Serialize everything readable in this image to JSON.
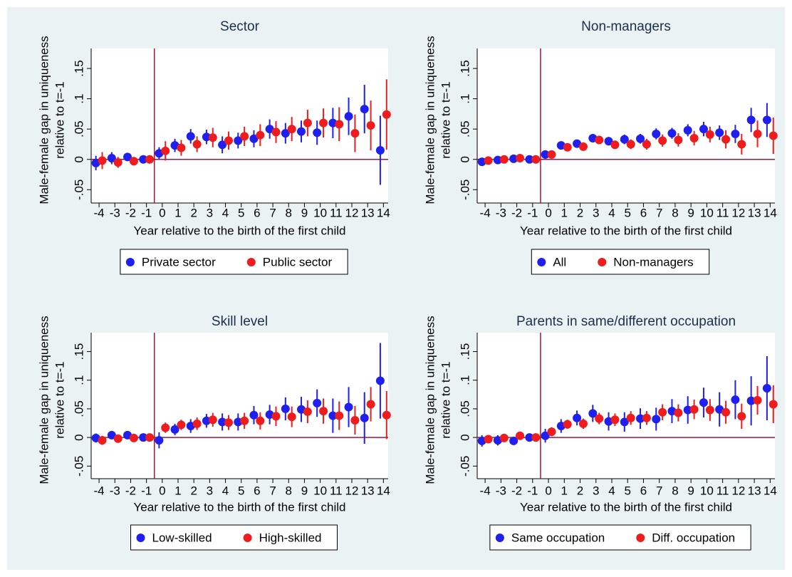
{
  "chart_data": [
    {
      "type": "errorbar",
      "title": "Sector",
      "ylabel": [
        "Male-female gap in uniqueness",
        "relative to t=-1"
      ],
      "xlabel": "Year relative to the birth of the first child",
      "x": [
        -4,
        -3,
        -2,
        -1,
        0,
        1,
        2,
        3,
        4,
        5,
        6,
        7,
        8,
        9,
        10,
        11,
        12,
        13,
        14
      ],
      "xlim": [
        -4.5,
        14.3
      ],
      "xticks": [
        -4,
        -3,
        -2,
        -1,
        0,
        1,
        2,
        3,
        4,
        5,
        6,
        7,
        8,
        9,
        10,
        11,
        12,
        13,
        14
      ],
      "ylim": [
        -0.072,
        0.183
      ],
      "yticks": [
        {
          "value": -0.05,
          "label": "-.05"
        },
        0,
        {
          "value": 0.05,
          "label": ".05"
        },
        {
          "value": 0.1,
          "label": ".1"
        },
        {
          "value": 0.15,
          "label": ".15"
        }
      ],
      "hline": 0,
      "vline": -0.5,
      "ref_color": "#a0163a",
      "series": [
        {
          "name": "Private sector",
          "color": "#1f1fef",
          "values": [
            -0.006,
            0.002,
            0.004,
            0,
            0.01,
            0.023,
            0.038,
            0.037,
            0.024,
            0.031,
            0.034,
            0.05,
            0.043,
            0.046,
            0.044,
            0.06,
            0.071,
            0.083,
            0.015
          ],
          "errors": [
            0.012,
            0.01,
            0.006,
            0,
            0.01,
            0.011,
            0.012,
            0.012,
            0.014,
            0.013,
            0.014,
            0.016,
            0.017,
            0.018,
            0.02,
            0.025,
            0.031,
            0.04,
            0.057
          ]
        },
        {
          "name": "Public sector",
          "color": "#ee1c1c",
          "values": [
            -0.002,
            -0.005,
            -0.003,
            0,
            0.014,
            0.019,
            0.025,
            0.036,
            0.031,
            0.038,
            0.04,
            0.045,
            0.05,
            0.06,
            0.06,
            0.058,
            0.043,
            0.056,
            0.074
          ],
          "errors": [
            0.014,
            0.009,
            0.007,
            0,
            0.016,
            0.013,
            0.013,
            0.016,
            0.015,
            0.016,
            0.018,
            0.018,
            0.02,
            0.022,
            0.024,
            0.028,
            0.031,
            0.041,
            0.058
          ]
        }
      ]
    },
    {
      "type": "errorbar",
      "title": "Non-managers",
      "ylabel": [
        "Male-female gap in uniqueness",
        "relative to t=-1"
      ],
      "xlabel": "Year relative to the birth of the first child",
      "x": [
        -4,
        -3,
        -2,
        -1,
        0,
        1,
        2,
        3,
        4,
        5,
        6,
        7,
        8,
        9,
        10,
        11,
        12,
        13,
        14
      ],
      "xlim": [
        -4.5,
        14.3
      ],
      "xticks": [
        -4,
        -3,
        -2,
        -1,
        0,
        1,
        2,
        3,
        4,
        5,
        6,
        7,
        8,
        9,
        10,
        11,
        12,
        13,
        14
      ],
      "ylim": [
        -0.072,
        0.183
      ],
      "yticks": [
        {
          "value": -0.05,
          "label": "-.05"
        },
        0,
        {
          "value": 0.05,
          "label": ".05"
        },
        {
          "value": 0.1,
          "label": ".1"
        },
        {
          "value": 0.15,
          "label": ".15"
        }
      ],
      "hline": 0,
      "vline": -0.5,
      "ref_color": "#a0163a",
      "series": [
        {
          "name": "All",
          "color": "#1f1fef",
          "values": [
            -0.004,
            -0.001,
            0.001,
            0,
            0.008,
            0.023,
            0.026,
            0.035,
            0.03,
            0.033,
            0.034,
            0.042,
            0.043,
            0.048,
            0.05,
            0.044,
            0.042,
            0.065,
            0.065
          ],
          "errors": [
            0.004,
            0.004,
            0.004,
            0,
            0.007,
            0.005,
            0.006,
            0.007,
            0.007,
            0.008,
            0.008,
            0.009,
            0.009,
            0.01,
            0.012,
            0.012,
            0.015,
            0.02,
            0.028
          ]
        },
        {
          "name": "Non-managers",
          "color": "#ee1c1c",
          "values": [
            -0.002,
            0.0,
            0.002,
            0,
            0.008,
            0.02,
            0.021,
            0.032,
            0.024,
            0.025,
            0.025,
            0.031,
            0.032,
            0.035,
            0.041,
            0.033,
            0.025,
            0.042,
            0.039
          ],
          "errors": [
            0.004,
            0.004,
            0.004,
            0,
            0.006,
            0.006,
            0.006,
            0.007,
            0.007,
            0.008,
            0.009,
            0.01,
            0.011,
            0.012,
            0.013,
            0.015,
            0.017,
            0.022,
            0.03
          ]
        }
      ]
    },
    {
      "type": "errorbar",
      "title": "Skill level",
      "ylabel": [
        "Male-female gap in uniqueness",
        "relative to t=-1"
      ],
      "xlabel": "Year relative to the birth of the first child",
      "x": [
        -4,
        -3,
        -2,
        -1,
        0,
        1,
        2,
        3,
        4,
        5,
        6,
        7,
        8,
        9,
        10,
        11,
        12,
        13,
        14
      ],
      "xlim": [
        -4.5,
        14.3
      ],
      "xticks": [
        -4,
        -3,
        -2,
        -1,
        0,
        1,
        2,
        3,
        4,
        5,
        6,
        7,
        8,
        9,
        10,
        11,
        12,
        13,
        14
      ],
      "ylim": [
        -0.072,
        0.183
      ],
      "yticks": [
        {
          "value": -0.05,
          "label": "-.05"
        },
        0,
        {
          "value": 0.05,
          "label": ".05"
        },
        {
          "value": 0.1,
          "label": ".1"
        },
        {
          "value": 0.15,
          "label": ".15"
        }
      ],
      "hline": 0,
      "vline": -0.5,
      "ref_color": "#a0163a",
      "series": [
        {
          "name": "Low-skilled",
          "color": "#1f1fef",
          "values": [
            -0.001,
            0.004,
            0.004,
            0,
            -0.005,
            0.014,
            0.02,
            0.029,
            0.027,
            0.027,
            0.039,
            0.04,
            0.05,
            0.049,
            0.06,
            0.038,
            0.053,
            0.034,
            0.099
          ],
          "errors": [
            0.008,
            0.007,
            0.005,
            0,
            0.014,
            0.01,
            0.012,
            0.012,
            0.015,
            0.015,
            0.016,
            0.017,
            0.02,
            0.022,
            0.024,
            0.03,
            0.035,
            0.045,
            0.066
          ]
        },
        {
          "name": "High-skilled",
          "color": "#ee1c1c",
          "values": [
            -0.005,
            -0.002,
            -0.001,
            0,
            0.017,
            0.022,
            0.024,
            0.031,
            0.026,
            0.029,
            0.029,
            0.037,
            0.036,
            0.045,
            0.046,
            0.038,
            0.03,
            0.058,
            0.039
          ],
          "errors": [
            0.008,
            0.006,
            0.004,
            0,
            0.009,
            0.009,
            0.011,
            0.012,
            0.013,
            0.014,
            0.015,
            0.017,
            0.018,
            0.02,
            0.022,
            0.025,
            0.025,
            0.03,
            0.042
          ]
        }
      ]
    },
    {
      "type": "errorbar",
      "title": "Parents in same/different occupation",
      "ylabel": [
        "Male-female gap in uniqueness",
        "relative to t=-1"
      ],
      "xlabel": "Year relative to the birth of the first child",
      "x": [
        -4,
        -3,
        -2,
        -1,
        0,
        1,
        2,
        3,
        4,
        5,
        6,
        7,
        8,
        9,
        10,
        11,
        12,
        13,
        14
      ],
      "xlim": [
        -4.5,
        14.3
      ],
      "xticks": [
        -4,
        -3,
        -2,
        -1,
        0,
        1,
        2,
        3,
        4,
        5,
        6,
        7,
        8,
        9,
        10,
        11,
        12,
        13,
        14
      ],
      "ylim": [
        -0.072,
        0.183
      ],
      "yticks": [
        {
          "value": -0.05,
          "label": "-.05"
        },
        0,
        {
          "value": 0.05,
          "label": ".05"
        },
        {
          "value": 0.1,
          "label": ".1"
        },
        {
          "value": 0.15,
          "label": ".15"
        }
      ],
      "hline": 0,
      "vline": -0.5,
      "ref_color": "#a0163a",
      "series": [
        {
          "name": "Same occupation",
          "color": "#1f1fef",
          "values": [
            -0.006,
            -0.005,
            -0.006,
            0,
            0.003,
            0.02,
            0.034,
            0.042,
            0.028,
            0.027,
            0.033,
            0.032,
            0.046,
            0.048,
            0.061,
            0.049,
            0.066,
            0.064,
            0.086
          ],
          "errors": [
            0.01,
            0.009,
            0.006,
            0,
            0.012,
            0.012,
            0.013,
            0.015,
            0.016,
            0.017,
            0.018,
            0.02,
            0.021,
            0.024,
            0.026,
            0.03,
            0.034,
            0.043,
            0.056
          ]
        },
        {
          "name": "Diff. occupation",
          "color": "#ee1c1c",
          "values": [
            -0.003,
            -0.001,
            0.003,
            0,
            0.01,
            0.023,
            0.024,
            0.033,
            0.031,
            0.034,
            0.034,
            0.044,
            0.043,
            0.049,
            0.048,
            0.044,
            0.037,
            0.065,
            0.058
          ],
          "errors": [
            0.007,
            0.006,
            0.005,
            0,
            0.008,
            0.008,
            0.009,
            0.01,
            0.011,
            0.012,
            0.012,
            0.014,
            0.015,
            0.017,
            0.019,
            0.02,
            0.022,
            0.025,
            0.033
          ]
        }
      ]
    }
  ]
}
